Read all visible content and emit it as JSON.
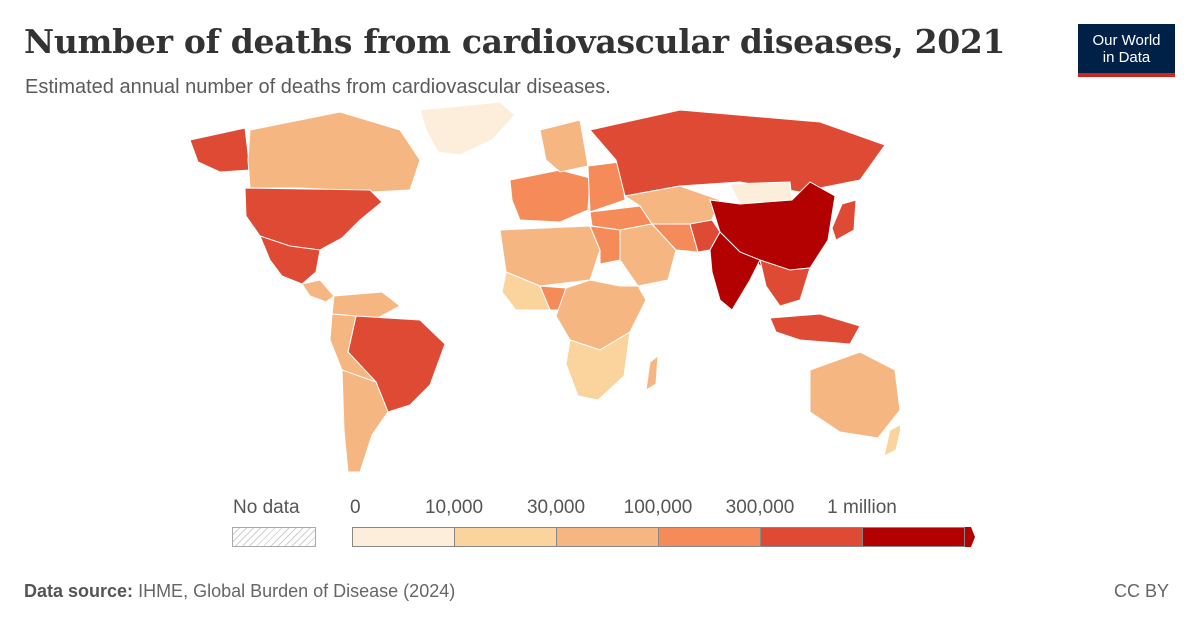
{
  "header": {
    "title": "Number of deaths from cardiovascular diseases, 2021",
    "subtitle": "Estimated annual number of deaths from cardiovascular diseases."
  },
  "logo": {
    "line1": "Our World",
    "line2": "in Data"
  },
  "legend": {
    "no_data_label": "No data",
    "ticks": [
      "0",
      "10,000",
      "30,000",
      "100,000",
      "300,000",
      "1 million"
    ],
    "bins": [
      {
        "range": "0–10,000",
        "color": "#fdeedb"
      },
      {
        "range": "10,000–30,000",
        "color": "#fbd39c"
      },
      {
        "range": "30,000–100,000",
        "color": "#f6b682"
      },
      {
        "range": "100,000–300,000",
        "color": "#f58b59"
      },
      {
        "range": "300,000–1 million",
        "color": "#de4a34"
      },
      {
        "range": "1 million+",
        "color": "#b30000"
      }
    ]
  },
  "map_regions": [
    {
      "name": "Canada",
      "bin": 2
    },
    {
      "name": "United States",
      "bin": 4
    },
    {
      "name": "Mexico",
      "bin": 4
    },
    {
      "name": "Brazil",
      "bin": 4
    },
    {
      "name": "Russia",
      "bin": 4
    },
    {
      "name": "China",
      "bin": 5
    },
    {
      "name": "India",
      "bin": 5
    },
    {
      "name": "Indonesia",
      "bin": 4
    },
    {
      "name": "Australia",
      "bin": 2
    },
    {
      "name": "Greenland",
      "bin": 0
    },
    {
      "name": "Nigeria",
      "bin": 3
    },
    {
      "name": "Egypt",
      "bin": 3
    },
    {
      "name": "Japan",
      "bin": 4
    },
    {
      "name": "Pakistan",
      "bin": 4
    },
    {
      "name": "Iran",
      "bin": 3
    },
    {
      "name": "Turkey",
      "bin": 3
    },
    {
      "name": "Mongolia",
      "bin": 0
    }
  ],
  "footer": {
    "source_label": "Data source:",
    "source_text": "IHME, Global Burden of Disease (2024)",
    "license": "CC BY"
  }
}
